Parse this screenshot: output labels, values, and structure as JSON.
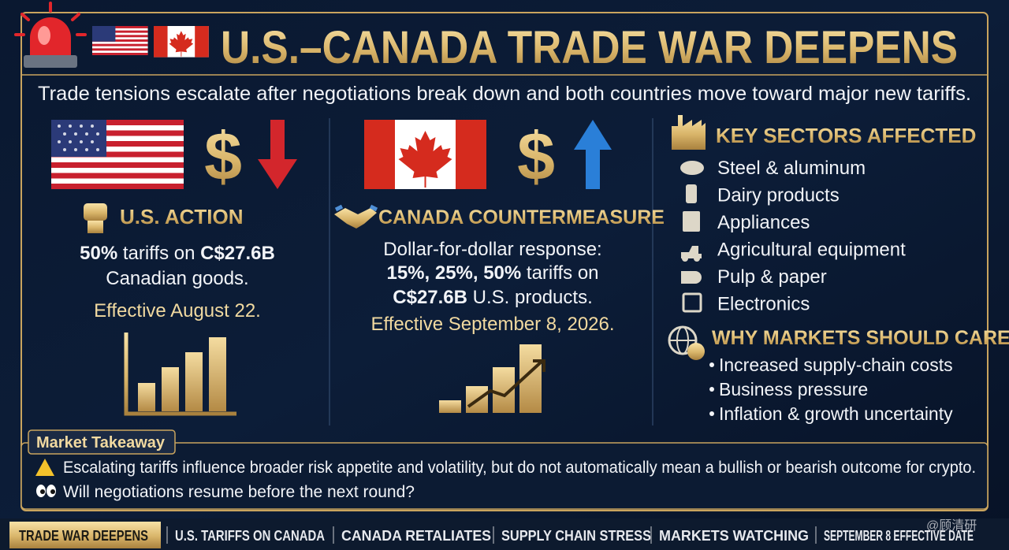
{
  "header": {
    "title": "U.S.–CANADA TRADE WAR DEEPENS",
    "subtitle": "Trade tensions escalate after negotiations break down and both countries move toward major new tariffs."
  },
  "currency_symbol": "$",
  "us_action": {
    "heading": "U.S. ACTION",
    "line1": [
      "50%",
      " tariffs on ",
      "C$27.6B"
    ],
    "line2": "Canadian goods.",
    "effective": "Effective August 22."
  },
  "canada_countermeasure": {
    "heading": "CANADA COUNTERMEASURE",
    "line1": "Dollar-for-dollar response:",
    "line2": [
      "15%, 25%, 50%",
      " tariffs on"
    ],
    "line3": [
      "C$27.6B",
      " U.S. products."
    ],
    "effective": "Effective September 8, 2026."
  },
  "sectors": {
    "heading": "KEY SECTORS AFFECTED",
    "items": [
      "Steel & aluminum",
      "Dairy products",
      "Appliances",
      "Agricultural equipment",
      "Pulp & paper",
      "Electronics"
    ]
  },
  "markets": {
    "heading": "WHY MARKETS SHOULD CARE",
    "items": [
      "Increased supply-chain costs",
      "Business pressure",
      "Inflation & growth uncertainty"
    ]
  },
  "takeaway": {
    "heading": "Market Takeaway",
    "lines": [
      "Escalating tariffs influence broader risk appetite and volatility, but do not automatically mean a bullish or bearish outcome for crypto.",
      "Will negotiations resume before the next round?"
    ]
  },
  "ticker": [
    "TRADE WAR DEEPENS",
    "U.S. TARIFFS ON CANADA",
    "CANADA RETALIATES",
    "SUPPLY CHAIN STRESS",
    "MARKETS WATCHING",
    "SEPTEMBER 8 EFFECTIVE DATE"
  ],
  "watermark": "@顾清研"
}
